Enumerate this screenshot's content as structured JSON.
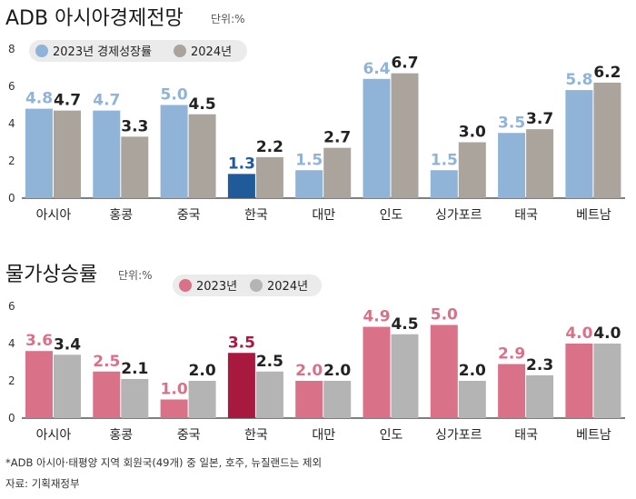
{
  "chart_data": [
    {
      "type": "bar",
      "title": "ADB 아시아경제전망",
      "unit": "단위:%",
      "categories": [
        "아시아",
        "홍콩",
        "중국",
        "한국",
        "대만",
        "인도",
        "싱가포르",
        "태국",
        "베트남"
      ],
      "highlight_category": "한국",
      "series": [
        {
          "name": "2023년 경제성장률",
          "values": [
            4.8,
            4.7,
            5.0,
            1.3,
            1.5,
            6.4,
            1.5,
            3.5,
            5.8
          ],
          "color": "#8fb4d8",
          "highlight_color": "#1f5a9a",
          "label_color": "#8fb4d8",
          "highlight_label_color": "#1f5a9a"
        },
        {
          "name": "2024년",
          "values": [
            4.7,
            3.3,
            4.5,
            2.2,
            2.7,
            6.7,
            3.0,
            3.7,
            6.2
          ],
          "color": "#aaa49c",
          "highlight_color": "#aaa49c",
          "label_color": "#222222",
          "highlight_label_color": "#222222"
        }
      ],
      "yticks": [
        0,
        2,
        4,
        6,
        8
      ],
      "ylim": [
        0,
        8
      ],
      "legend": "top-left",
      "grid": false
    },
    {
      "type": "bar",
      "title": "물가상승률",
      "unit": "단위:%",
      "categories": [
        "아시아",
        "홍콩",
        "중국",
        "한국",
        "대만",
        "인도",
        "싱가포르",
        "태국",
        "베트남"
      ],
      "highlight_category": "한국",
      "series": [
        {
          "name": "2023년",
          "values": [
            3.6,
            2.5,
            1.0,
            3.5,
            2.0,
            4.9,
            5.0,
            2.9,
            4.0
          ],
          "color": "#d97188",
          "highlight_color": "#a8193f",
          "label_color": "#d97188",
          "highlight_label_color": "#a8193f"
        },
        {
          "name": "2024년",
          "values": [
            3.4,
            2.1,
            2.0,
            2.5,
            2.0,
            4.5,
            2.0,
            2.3,
            4.0
          ],
          "color": "#b4b4b4",
          "highlight_color": "#b4b4b4",
          "label_color": "#222222",
          "highlight_label_color": "#222222"
        }
      ],
      "yticks": [
        0,
        2,
        4,
        6
      ],
      "ylim": [
        0,
        6
      ],
      "legend": "top-center",
      "grid": false
    }
  ],
  "footnotes": [
    "*ADB 아시아·태평양 지역 회원국(49개) 중 일본, 호주, 뉴질랜드는 제외",
    "자료: 기획재정부"
  ]
}
